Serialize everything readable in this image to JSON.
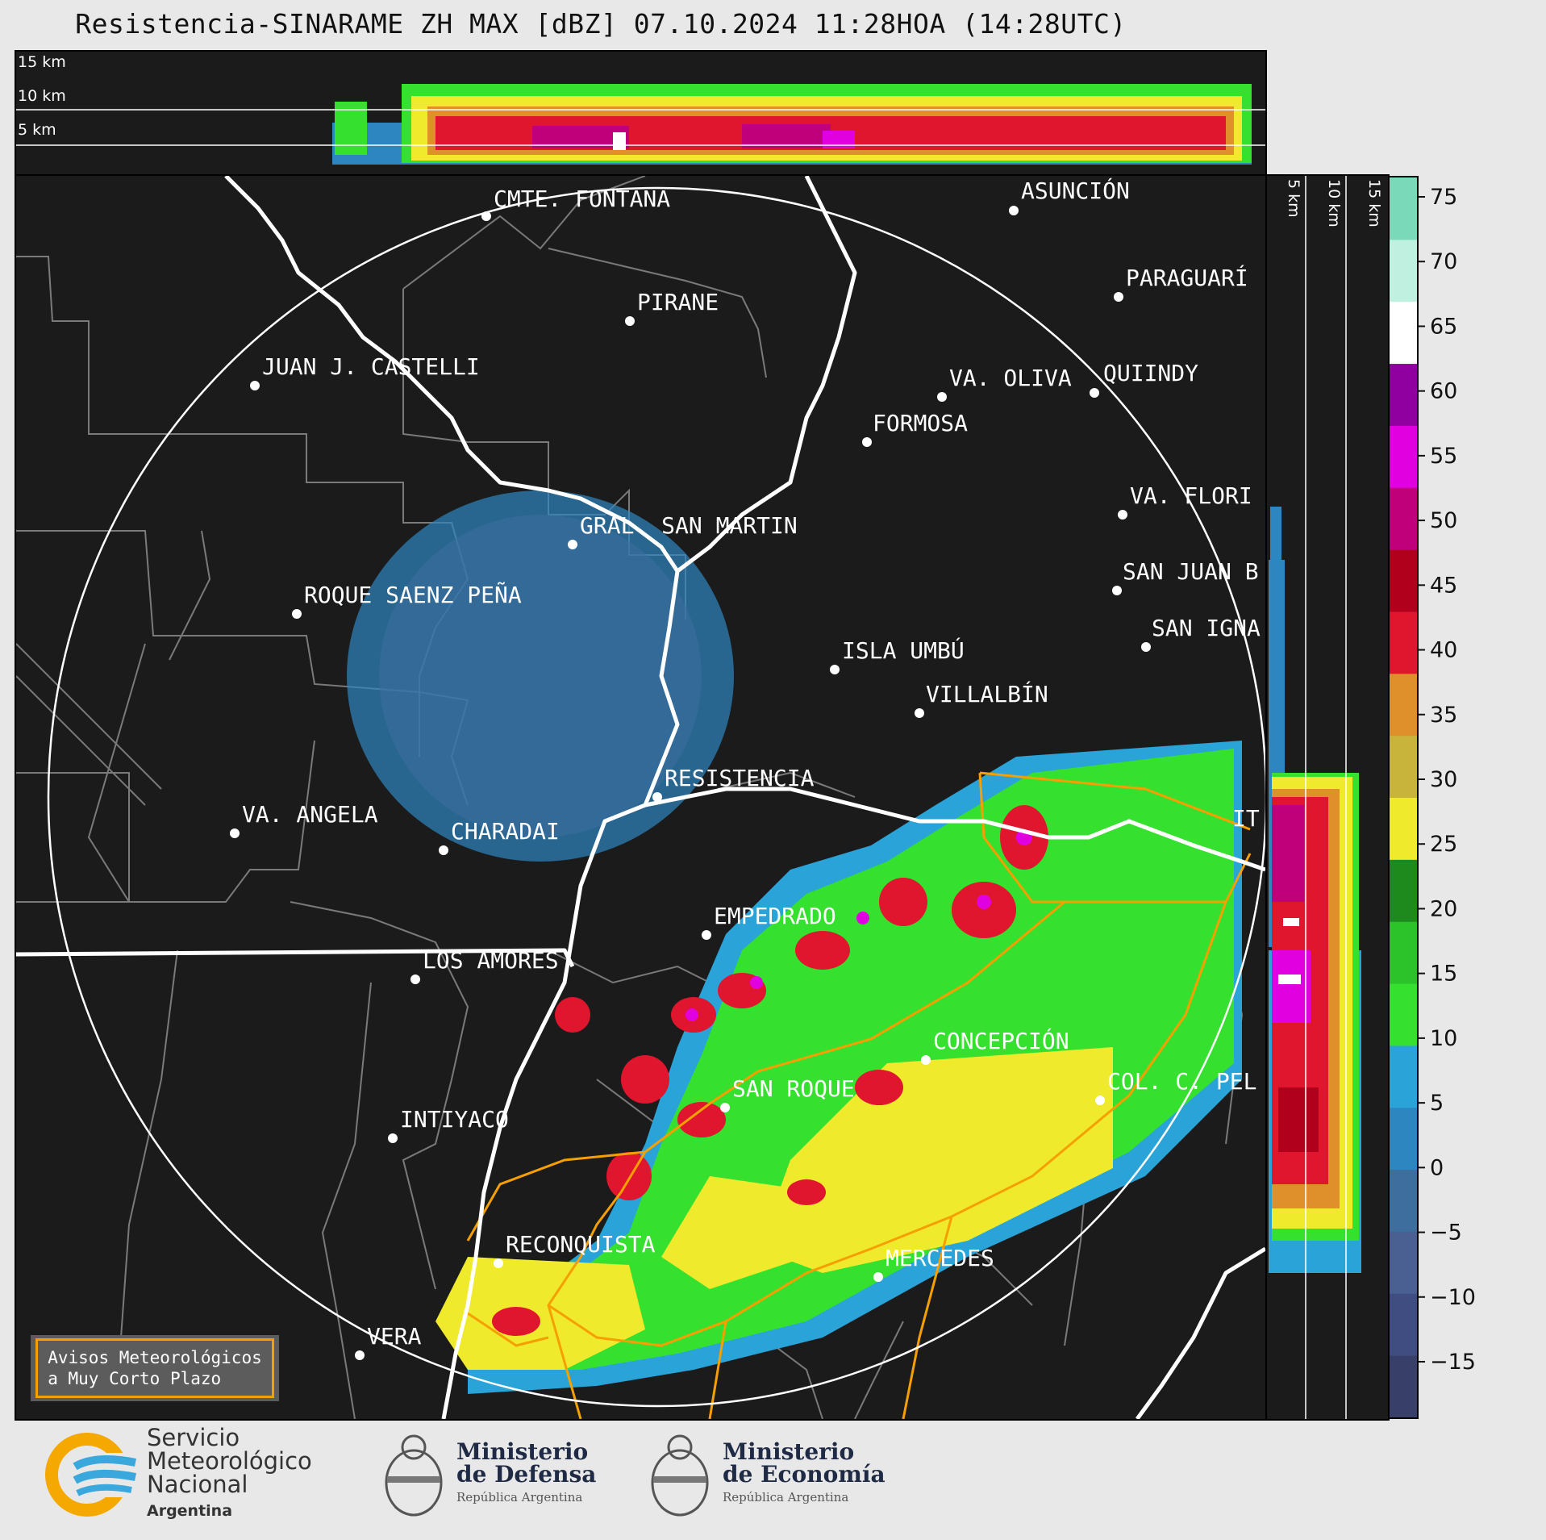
{
  "title": "Resistencia-SINARAME ZH MAX [dBZ] 07.10.2024 11:28HOA (14:28UTC)",
  "top_profile": {
    "height_labels": [
      "15 km",
      "10 km",
      "5 km"
    ]
  },
  "side_profile": {
    "height_labels": [
      "5 km",
      "10 km",
      "15 km"
    ]
  },
  "map": {
    "places": [
      {
        "id": "cmte-fontana",
        "name": "CMTE. FONTANA"
      },
      {
        "id": "asuncion",
        "name": "ASUNCIÓN"
      },
      {
        "id": "paraguari",
        "name": "PARAGUARÍ"
      },
      {
        "id": "pirane",
        "name": "PIRANE"
      },
      {
        "id": "juan-j-castelli",
        "name": "JUAN J. CASTELLI"
      },
      {
        "id": "va-oliva",
        "name": "VA. OLIVA"
      },
      {
        "id": "quiindy",
        "name": "QUIINDY"
      },
      {
        "id": "formosa",
        "name": "FORMOSA"
      },
      {
        "id": "va-florida",
        "name": "VA. FLORI"
      },
      {
        "id": "gral-san-martin",
        "name": "GRAL. SAN MARTIN"
      },
      {
        "id": "san-juan-b",
        "name": "SAN JUAN B"
      },
      {
        "id": "roque-saenz-pena",
        "name": "ROQUE SAENZ PEÑA"
      },
      {
        "id": "san-ignacio",
        "name": "SAN IGNA"
      },
      {
        "id": "isla-umbu",
        "name": "ISLA UMBÚ"
      },
      {
        "id": "villalbin",
        "name": "VILLALBÍN"
      },
      {
        "id": "resistencia",
        "name": "RESISTENCIA"
      },
      {
        "id": "va-angela",
        "name": "VA. ANGELA"
      },
      {
        "id": "charadai",
        "name": "CHARADAI"
      },
      {
        "id": "ita",
        "name": "IT"
      },
      {
        "id": "empedrado",
        "name": "EMPEDRADO"
      },
      {
        "id": "los-amores",
        "name": "LOS AMORES"
      },
      {
        "id": "concepcion",
        "name": "CONCEPCIÓN"
      },
      {
        "id": "san-roque",
        "name": "SAN ROQUE"
      },
      {
        "id": "col-c-pellegrini",
        "name": "COL. C. PEL"
      },
      {
        "id": "intiyaco",
        "name": "INTIYACO"
      },
      {
        "id": "reconquista",
        "name": "RECONQUISTA"
      },
      {
        "id": "mercedes",
        "name": "MERCEDES"
      },
      {
        "id": "vera",
        "name": "VERA"
      }
    ]
  },
  "colorbar": {
    "units": "dBZ",
    "ticks": [
      "75",
      "70",
      "65",
      "60",
      "55",
      "50",
      "45",
      "40",
      "35",
      "30",
      "25",
      "20",
      "15",
      "10",
      "5",
      "0",
      "−5",
      "−10",
      "−15"
    ],
    "colors": [
      "#38406a",
      "#3f4d80",
      "#4a5f92",
      "#3d6e9e",
      "#2e86c0",
      "#2aa3d8",
      "#35e02e",
      "#2bc22a",
      "#1e8a1e",
      "#f0ea2c",
      "#c8b43a",
      "#e0902a",
      "#e0152e",
      "#b0001c",
      "#c0007a",
      "#e000e0",
      "#9000a0",
      "#ffffff",
      "#c0f0e0",
      "#7ad9b8"
    ]
  },
  "avisos": {
    "line1": "Avisos Meteorológicos",
    "line2": "a Muy Corto Plazo"
  },
  "logos": {
    "smn": {
      "line1": "Servicio",
      "line2": "Meteorológico",
      "line3": "Nacional",
      "line4": "Argentina"
    },
    "defensa": {
      "line1": "Ministerio",
      "line2": "de Defensa",
      "line3": "República Argentina"
    },
    "economia": {
      "line1": "Ministerio",
      "line2": "de Economía",
      "line3": "República Argentina"
    }
  }
}
